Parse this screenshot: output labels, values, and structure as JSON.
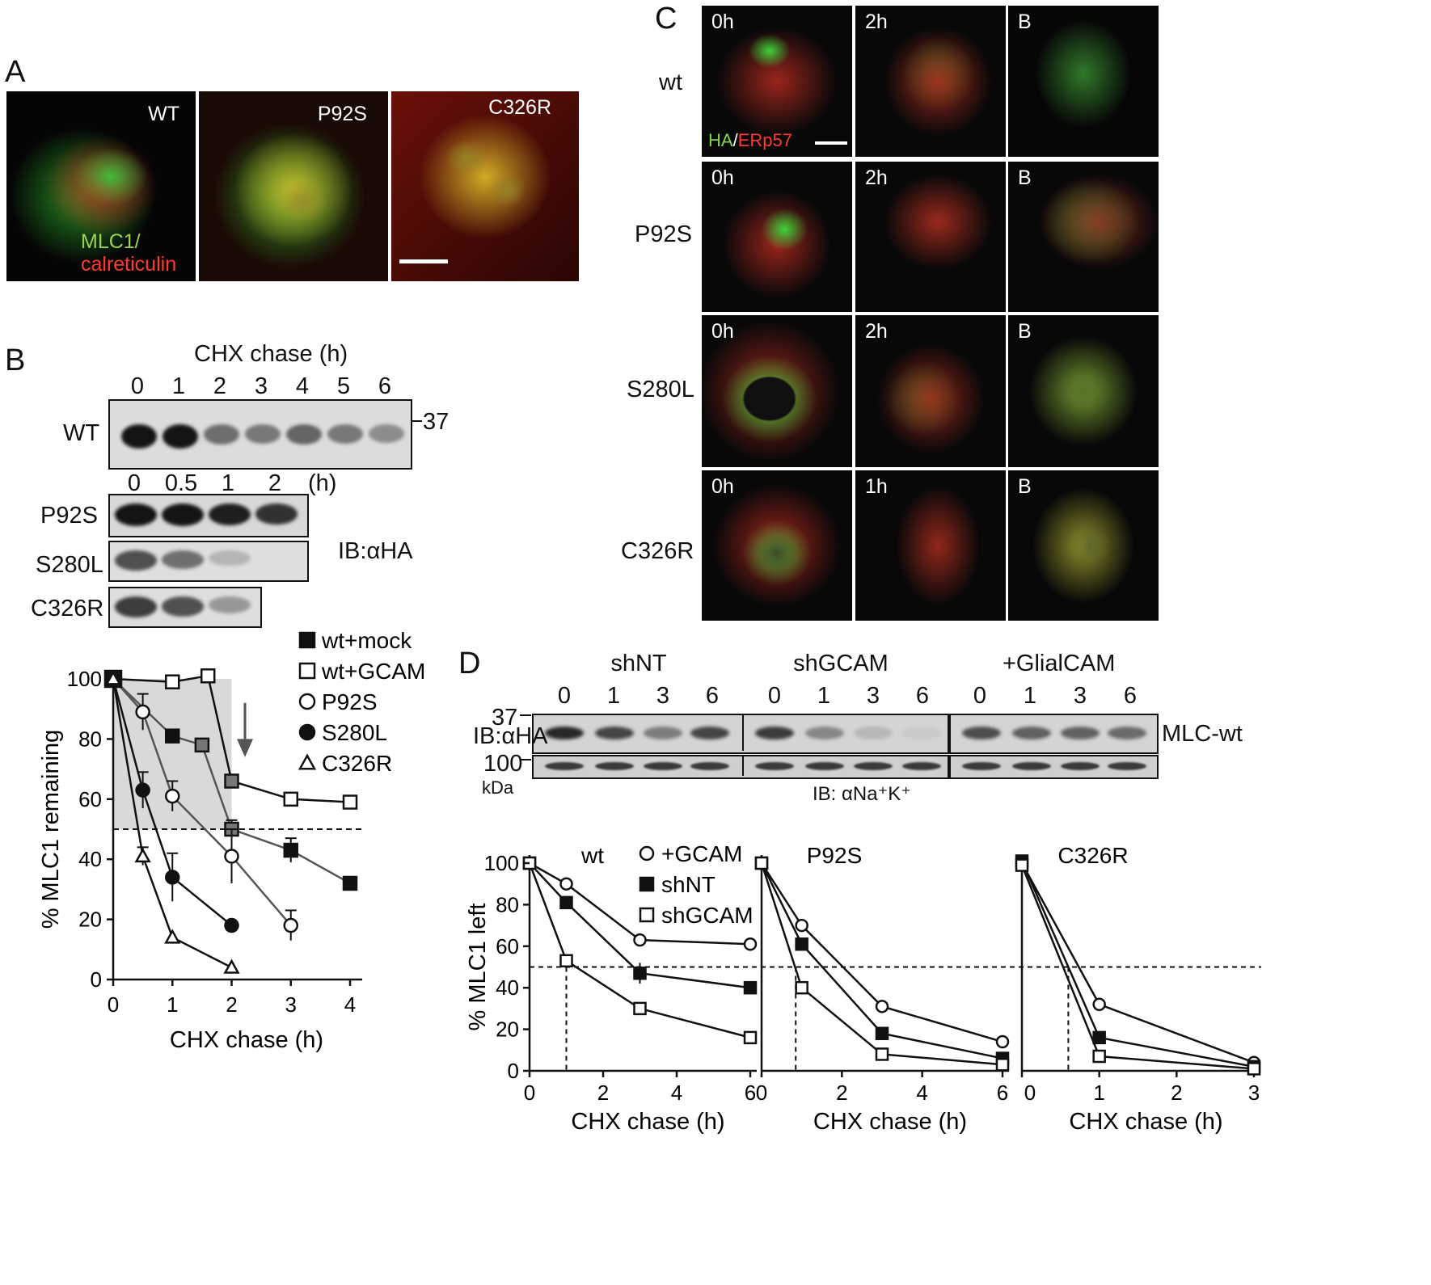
{
  "panel_labels": {
    "a": "A",
    "b": "B",
    "c": "C",
    "d": "D"
  },
  "panel_a": {
    "images": [
      {
        "label": "WT",
        "style": "wt"
      },
      {
        "label": "P92S",
        "style": "yellow"
      },
      {
        "label": "C326R",
        "style": "yellow2"
      }
    ],
    "stain_green": "MLC1/",
    "stain_red": "calreticulin",
    "colors": {
      "green": "#22c430",
      "red": "#d01c1c",
      "yellow": "#c9b32a"
    }
  },
  "panel_b": {
    "chase_title": "CHX chase (h)",
    "wt_lanes": [
      "0",
      "1",
      "2",
      "3",
      "4",
      "5",
      "6"
    ],
    "wt_label": "WT",
    "marker": "37",
    "mut_lanes": [
      "0",
      "0.5",
      "1",
      "2"
    ],
    "mut_unit": "(h)",
    "mut_rows": [
      {
        "label": "P92S",
        "bands": [
          1.0,
          1.0,
          0.95,
          0.85
        ]
      },
      {
        "label": "S280L",
        "bands": [
          0.7,
          0.55,
          0.2
        ]
      },
      {
        "label": "C326R",
        "bands": [
          0.8,
          0.7,
          0.35
        ]
      }
    ],
    "wt_bands": [
      1.0,
      1.0,
      0.55,
      0.5,
      0.6,
      0.5,
      0.4
    ],
    "ib": "IB:αHA"
  },
  "panel_c": {
    "row_labels": [
      "wt",
      "P92S",
      "S280L",
      "C326R"
    ],
    "col_labels": [
      [
        "0h",
        "2h",
        "B"
      ],
      [
        "0h",
        "2h",
        "B"
      ],
      [
        "0h",
        "2h",
        "B"
      ],
      [
        "0h",
        "1h",
        "B"
      ]
    ],
    "stain_green": "HA",
    "stain_sep": "/",
    "stain_red": "ERp57"
  },
  "panel_d": {
    "groups": [
      "shNT",
      "shGCAM",
      "+GlialCAM"
    ],
    "lanes": [
      "0",
      "1",
      "3",
      "6"
    ],
    "marker_37": "37",
    "marker_100": "100",
    "kda": "kDa",
    "ib_ha": "IB:αHA",
    "ib_nak": "IB: αNa⁺K⁺",
    "row_label": "MLC-wt"
  },
  "chart_data": [
    {
      "type": "line",
      "panel": "B",
      "xlabel": "CHX chase (h)",
      "ylabel": "% MLC1 remaining",
      "xlim": [
        0,
        4.2
      ],
      "ylim": [
        0,
        100
      ],
      "xticks": [
        0,
        1,
        2,
        3,
        4
      ],
      "yticks": [
        0,
        20,
        40,
        60,
        80,
        100
      ],
      "dashed_line_y": 50,
      "shaded_region": {
        "x": [
          0,
          2
        ],
        "y": [
          50,
          100
        ]
      },
      "legend": "top-right",
      "series": [
        {
          "name": "wt+mock",
          "marker": "square-filled",
          "x": [
            0,
            1,
            1.5,
            2,
            3,
            4
          ],
          "y": [
            100,
            81,
            78,
            50,
            43,
            32
          ],
          "err": [
            0,
            0,
            0,
            3,
            4,
            0
          ]
        },
        {
          "name": "wt+GCAM",
          "marker": "square-open",
          "x": [
            0,
            1,
            1.6,
            2,
            3,
            4
          ],
          "y": [
            100,
            99,
            101,
            66,
            60,
            59
          ],
          "err": [
            0,
            2,
            0,
            2,
            2,
            2
          ]
        },
        {
          "name": "P92S",
          "marker": "circle-open",
          "x": [
            0,
            0.5,
            1,
            2,
            3
          ],
          "y": [
            100,
            89,
            61,
            41,
            18
          ],
          "err": [
            0,
            6,
            5,
            9,
            5
          ]
        },
        {
          "name": "S280L",
          "marker": "circle-filled",
          "x": [
            0,
            0.5,
            1,
            2
          ],
          "y": [
            100,
            63,
            34,
            18
          ],
          "err": [
            0,
            6,
            8,
            0
          ]
        },
        {
          "name": "C326R",
          "marker": "triangle-open",
          "x": [
            0,
            0.5,
            1,
            2
          ],
          "y": [
            100,
            41,
            14,
            4
          ],
          "err": [
            0,
            3,
            0,
            0
          ]
        }
      ]
    },
    {
      "type": "line",
      "panel": "D",
      "title": "wt",
      "xlabel": "CHX chase (h)",
      "ylabel": "% MLC1 left",
      "xlim": [
        0,
        6.2
      ],
      "ylim": [
        0,
        100
      ],
      "xticks": [
        0,
        2,
        4,
        6
      ],
      "yticks": [
        0,
        20,
        40,
        60,
        80,
        100
      ],
      "dashed_line_y": 50,
      "legend": "top-right",
      "series": [
        {
          "name": "+GCAM",
          "marker": "circle-open",
          "x": [
            0,
            1,
            3,
            6
          ],
          "y": [
            100,
            90,
            63,
            61
          ],
          "err": [
            0,
            2,
            0,
            0
          ]
        },
        {
          "name": "shNT",
          "marker": "square-filled",
          "x": [
            0,
            1,
            3,
            6
          ],
          "y": [
            100,
            81,
            47,
            40
          ],
          "err": [
            0,
            0,
            5,
            3
          ]
        },
        {
          "name": "shGCAM",
          "marker": "square-open",
          "x": [
            0,
            1,
            3,
            6
          ],
          "y": [
            100,
            53,
            30,
            16
          ],
          "err": [
            0,
            2,
            0,
            0
          ]
        }
      ]
    },
    {
      "type": "line",
      "panel": "D",
      "title": "P92S",
      "xlabel": "CHX chase (h)",
      "xlim": [
        0,
        6.2
      ],
      "ylim": [
        0,
        100
      ],
      "xticks": [
        0,
        2,
        4,
        6
      ],
      "dashed_line_y": 50,
      "series": [
        {
          "name": "+GCAM",
          "marker": "circle-open",
          "x": [
            0,
            1,
            3,
            6
          ],
          "y": [
            100,
            70,
            31,
            14
          ],
          "err": [
            0,
            2,
            0,
            0
          ]
        },
        {
          "name": "shNT",
          "marker": "square-filled",
          "x": [
            0,
            1,
            3,
            6
          ],
          "y": [
            100,
            61,
            18,
            6
          ],
          "err": [
            0,
            2,
            3,
            0
          ]
        },
        {
          "name": "shGCAM",
          "marker": "square-open",
          "x": [
            0,
            1,
            3,
            6
          ],
          "y": [
            100,
            40,
            8,
            3
          ],
          "err": [
            0,
            0,
            0,
            0
          ]
        }
      ]
    },
    {
      "type": "line",
      "panel": "D",
      "title": "C326R",
      "xlabel": "CHX chase (h)",
      "xlim": [
        0,
        3.05
      ],
      "ylim": [
        0,
        100
      ],
      "xticks": [
        0,
        1,
        2,
        3
      ],
      "dashed_line_y": 50,
      "series": [
        {
          "name": "+GCAM",
          "marker": "circle-open",
          "x": [
            0,
            1,
            3
          ],
          "y": [
            100,
            32,
            4
          ],
          "err": [
            0,
            3,
            0
          ]
        },
        {
          "name": "shNT",
          "marker": "square-filled",
          "x": [
            0,
            1,
            3
          ],
          "y": [
            101,
            16,
            2
          ],
          "err": [
            0,
            2,
            0
          ]
        },
        {
          "name": "shGCAM",
          "marker": "square-open",
          "x": [
            0,
            1,
            3
          ],
          "y": [
            99,
            7,
            1
          ],
          "err": [
            0,
            0,
            0
          ]
        }
      ]
    }
  ]
}
